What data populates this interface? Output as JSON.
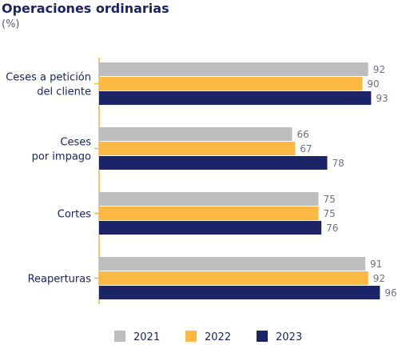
{
  "chart_data": {
    "type": "bar",
    "orientation": "horizontal",
    "title": "Operaciones ordinarias",
    "subtitle": "(%)",
    "categories": [
      [
        "Ceses a petición",
        "del cliente"
      ],
      [
        "Ceses",
        "por impago"
      ],
      [
        "Cortes"
      ],
      [
        "Reaperturas"
      ]
    ],
    "series": [
      {
        "name": "2021",
        "color": "#bcbec0",
        "values": [
          92,
          66,
          75,
          91
        ]
      },
      {
        "name": "2022",
        "color": "#fbb943",
        "values": [
          90,
          67,
          75,
          92
        ]
      },
      {
        "name": "2023",
        "color": "#1b2466",
        "values": [
          93,
          78,
          76,
          96
        ]
      }
    ],
    "xlim": [
      0,
      100
    ],
    "grid": false,
    "axis_color": "#f6b13f",
    "legend_position": "bottom"
  }
}
